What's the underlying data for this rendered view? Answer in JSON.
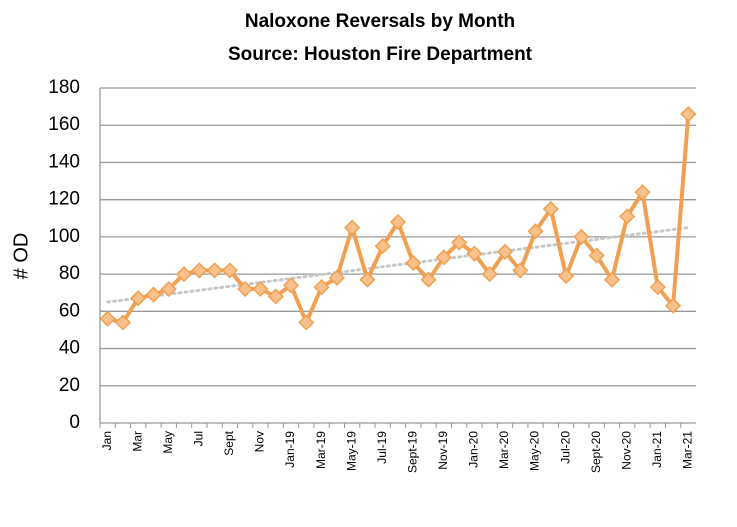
{
  "chart_data": {
    "type": "line",
    "title": "Naloxone Reversals by Month",
    "subtitle": "Source: Houston Fire Department",
    "y_label": "# OD",
    "categories": [
      "Jan",
      null,
      "Mar",
      null,
      "May",
      null,
      "Jul",
      null,
      "Sept",
      null,
      "Nov",
      null,
      "Jan-19",
      null,
      "Mar-19",
      null,
      "May-19",
      null,
      "Jul-19",
      null,
      "Sept-19",
      null,
      "Nov-19",
      null,
      "Jan-20",
      null,
      "Mar-20",
      null,
      "May-20",
      null,
      "Jul-20",
      null,
      "Sept-20",
      null,
      "Nov-20",
      null,
      "Jan-21",
      null,
      "Mar-21"
    ],
    "values": [
      56,
      54,
      67,
      69,
      72,
      80,
      82,
      82,
      82,
      72,
      72,
      68,
      74,
      54,
      73,
      78,
      105,
      77,
      95,
      108,
      86,
      77,
      89,
      97,
      91,
      80,
      92,
      82,
      103,
      115,
      79,
      100,
      90,
      77,
      111,
      124,
      73,
      63,
      166
    ],
    "color": "#f0a050",
    "trendline": {
      "color": "#c8c8c8",
      "values": [
        65,
        105
      ]
    },
    "ylim": [
      0,
      180
    ],
    "yticks": [
      0,
      20,
      40,
      60,
      80,
      100,
      120,
      140,
      160,
      180
    ],
    "grid": true
  }
}
